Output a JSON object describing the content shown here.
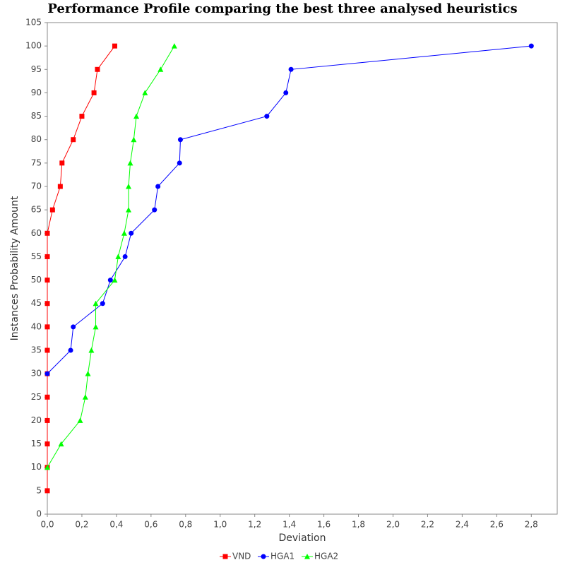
{
  "chart_data": {
    "type": "line",
    "title": "Performance Profile comparing the best three analysed heuristics",
    "x_label": "Deviation",
    "y_label": "Instances Probability Amount",
    "xlim": [
      0,
      2.95
    ],
    "ylim": [
      0,
      105
    ],
    "xticks": [
      {
        "value": 0,
        "label": "0,0"
      },
      {
        "value": 0.2,
        "label": "0,2"
      },
      {
        "value": 0.4,
        "label": "0,4"
      },
      {
        "value": 0.6,
        "label": "0,6"
      },
      {
        "value": 0.8,
        "label": "0,8"
      },
      {
        "value": 1.0,
        "label": "1,0"
      },
      {
        "value": 1.2,
        "label": "1,2"
      },
      {
        "value": 1.4,
        "label": "1,4"
      },
      {
        "value": 1.6,
        "label": "1,6"
      },
      {
        "value": 1.8,
        "label": "1,8"
      },
      {
        "value": 2.0,
        "label": "2,0"
      },
      {
        "value": 2.2,
        "label": "2,2"
      },
      {
        "value": 2.4,
        "label": "2,4"
      },
      {
        "value": 2.6,
        "label": "2,6"
      },
      {
        "value": 2.8,
        "label": "2,8"
      }
    ],
    "yticks": [
      0,
      5,
      10,
      15,
      20,
      25,
      30,
      35,
      40,
      45,
      50,
      55,
      60,
      65,
      70,
      75,
      80,
      85,
      90,
      95,
      100,
      105
    ],
    "grid": false,
    "legend": "bottom",
    "series": [
      {
        "name": "VND",
        "color": "#ff0000",
        "marker": "square",
        "x": [
          0,
          0,
          0,
          0,
          0,
          0,
          0,
          0,
          0,
          0,
          0,
          0,
          0.03,
          0.075,
          0.085,
          0.15,
          0.2,
          0.27,
          0.29,
          0.39
        ],
        "values": [
          5,
          10,
          15,
          20,
          25,
          30,
          35,
          40,
          45,
          50,
          55,
          60,
          65,
          70,
          75,
          80,
          85,
          90,
          95,
          100
        ]
      },
      {
        "name": "HGA1",
        "color": "#0000ff",
        "marker": "circle",
        "x": [
          0,
          0.135,
          0.15,
          0.32,
          0.365,
          0.45,
          0.485,
          0.62,
          0.64,
          0.765,
          0.77,
          1.27,
          1.38,
          1.41,
          2.8
        ],
        "values": [
          30,
          35,
          40,
          45,
          50,
          55,
          60,
          65,
          70,
          75,
          80,
          85,
          90,
          95,
          100
        ]
      },
      {
        "name": "HGA2",
        "color": "#00ff00",
        "marker": "triangle",
        "x": [
          0,
          0.08,
          0.19,
          0.22,
          0.235,
          0.255,
          0.28,
          0.28,
          0.39,
          0.41,
          0.445,
          0.47,
          0.47,
          0.48,
          0.5,
          0.515,
          0.565,
          0.655,
          0.735
        ],
        "values": [
          10,
          15,
          20,
          25,
          30,
          35,
          40,
          45,
          50,
          55,
          60,
          65,
          70,
          75,
          80,
          85,
          90,
          95,
          100
        ]
      }
    ]
  }
}
